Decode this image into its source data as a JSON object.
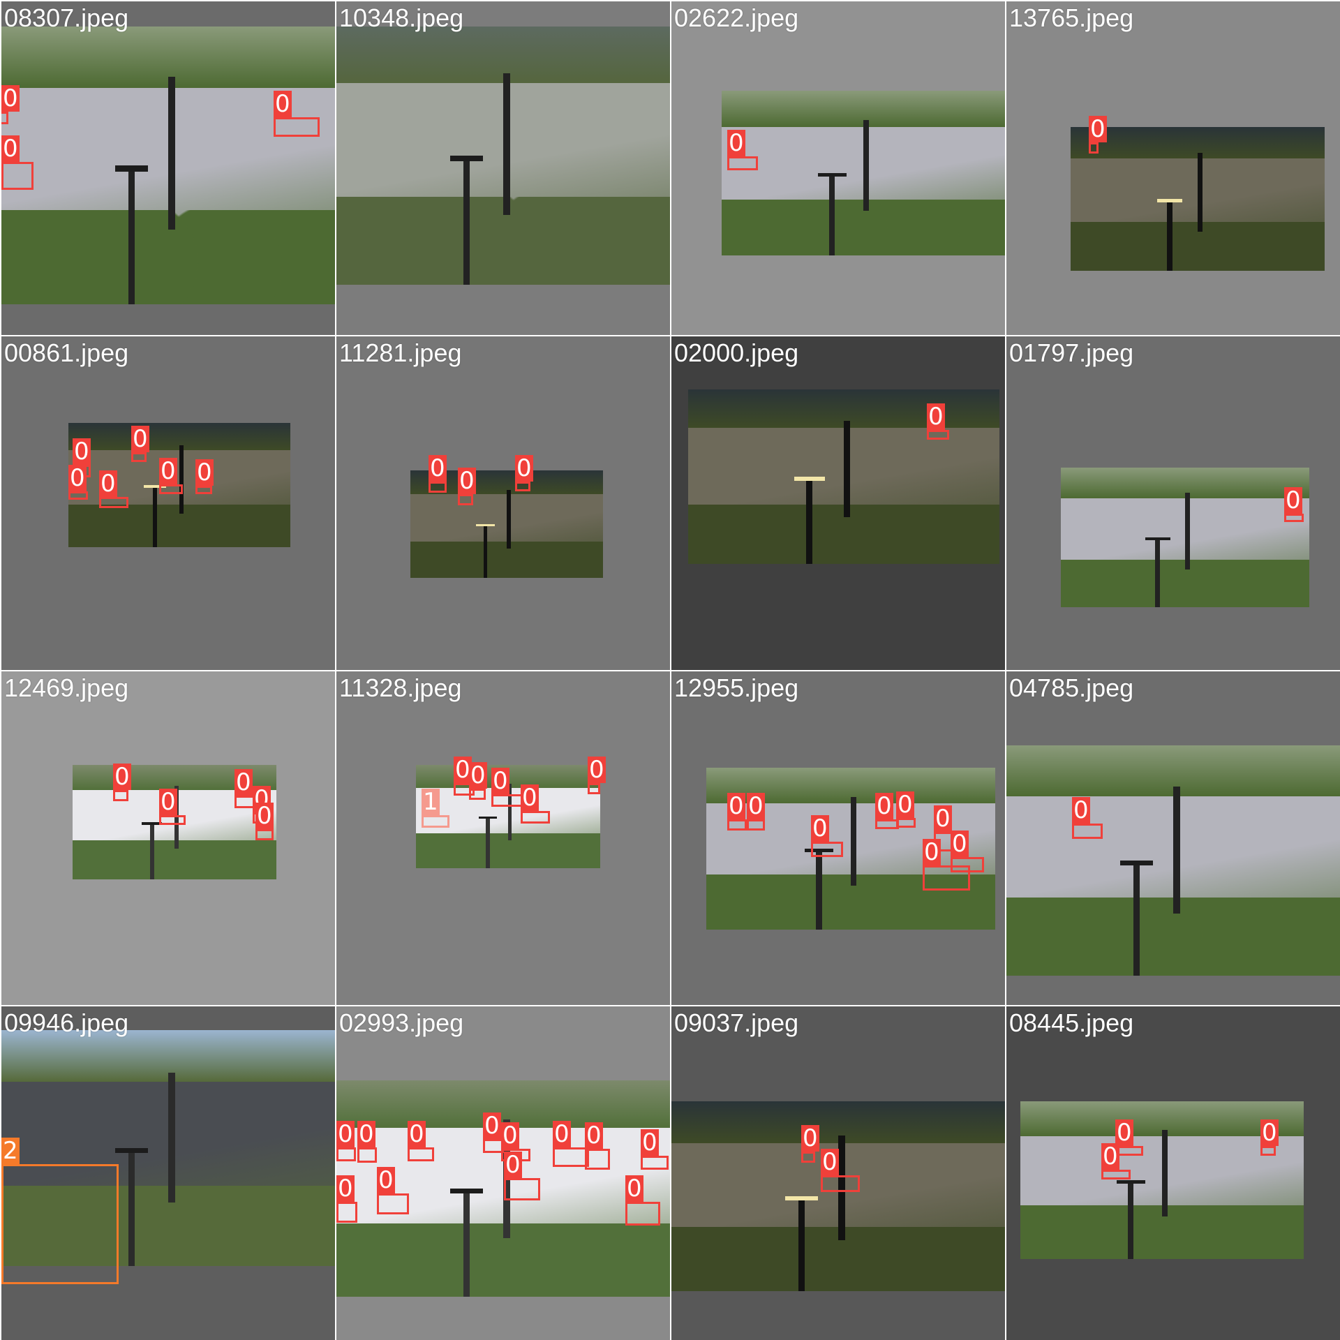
{
  "colors": {
    "class_0": "#f0403a",
    "class_1": "#f59a8e",
    "class_2": "#f57a2a"
  },
  "tiles": [
    {
      "filename": "08307.jpeg",
      "bg": "#6b6b6b",
      "scene": "day",
      "detections": [
        {
          "label": "0",
          "class": 0
        },
        {
          "label": "0",
          "class": 0
        },
        {
          "label": "0",
          "class": 0
        }
      ]
    },
    {
      "filename": "10348.jpeg",
      "bg": "#7c7c7c",
      "scene": "dusk",
      "detections": []
    },
    {
      "filename": "02622.jpeg",
      "bg": "#929292",
      "scene": "day",
      "detections": [
        {
          "label": "0",
          "class": 0
        }
      ]
    },
    {
      "filename": "13765.jpeg",
      "bg": "#898989",
      "scene": "night",
      "detections": [
        {
          "label": "0",
          "class": 0
        }
      ]
    },
    {
      "filename": "00861.jpeg",
      "bg": "#6f6f6f",
      "scene": "night",
      "detections": [
        {
          "label": "0",
          "class": 0
        },
        {
          "label": "0",
          "class": 0
        },
        {
          "label": "0",
          "class": 0
        },
        {
          "label": "0",
          "class": 0
        },
        {
          "label": "0",
          "class": 0
        },
        {
          "label": "0",
          "class": 0
        }
      ]
    },
    {
      "filename": "11281.jpeg",
      "bg": "#767676",
      "scene": "night",
      "detections": [
        {
          "label": "0",
          "class": 0
        },
        {
          "label": "0",
          "class": 0
        },
        {
          "label": "0",
          "class": 0
        }
      ]
    },
    {
      "filename": "02000.jpeg",
      "bg": "#404040",
      "scene": "night",
      "detections": [
        {
          "label": "0",
          "class": 0
        }
      ]
    },
    {
      "filename": "01797.jpeg",
      "bg": "#6d6d6d",
      "scene": "day",
      "detections": [
        {
          "label": "0",
          "class": 0
        }
      ]
    },
    {
      "filename": "12469.jpeg",
      "bg": "#9a9a9a",
      "scene": "bright",
      "detections": [
        {
          "label": "0",
          "class": 0
        },
        {
          "label": "0",
          "class": 0
        },
        {
          "label": "0",
          "class": 0
        },
        {
          "label": "0",
          "class": 0
        },
        {
          "label": "0",
          "class": 0
        }
      ]
    },
    {
      "filename": "11328.jpeg",
      "bg": "#7f7f7f",
      "scene": "bright",
      "detections": [
        {
          "label": "1",
          "class": 1
        },
        {
          "label": "0",
          "class": 0
        },
        {
          "label": "0",
          "class": 0
        },
        {
          "label": "0",
          "class": 0
        },
        {
          "label": "0",
          "class": 0
        },
        {
          "label": "0",
          "class": 0
        }
      ]
    },
    {
      "filename": "12955.jpeg",
      "bg": "#6f6f6f",
      "scene": "day",
      "detections": [
        {
          "label": "0",
          "class": 0
        },
        {
          "label": "0",
          "class": 0
        },
        {
          "label": "0",
          "class": 0
        },
        {
          "label": "0",
          "class": 0
        },
        {
          "label": "0",
          "class": 0
        },
        {
          "label": "0",
          "class": 0
        },
        {
          "label": "0",
          "class": 0
        },
        {
          "label": "0",
          "class": 0
        }
      ]
    },
    {
      "filename": "04785.jpeg",
      "bg": "#6d6d6d",
      "scene": "day",
      "detections": [
        {
          "label": "0",
          "class": 0
        }
      ]
    },
    {
      "filename": "09946.jpeg",
      "bg": "#5e5e5e",
      "scene": "street",
      "detections": [
        {
          "label": "2",
          "class": 2
        }
      ]
    },
    {
      "filename": "02993.jpeg",
      "bg": "#8a8a8a",
      "scene": "bright",
      "detections": [
        {
          "label": "0",
          "class": 0
        },
        {
          "label": "0",
          "class": 0
        },
        {
          "label": "0",
          "class": 0
        },
        {
          "label": "0",
          "class": 0
        },
        {
          "label": "0",
          "class": 0
        },
        {
          "label": "0",
          "class": 0
        },
        {
          "label": "0",
          "class": 0
        },
        {
          "label": "0",
          "class": 0
        },
        {
          "label": "0",
          "class": 0
        },
        {
          "label": "0",
          "class": 0
        },
        {
          "label": "0",
          "class": 0
        },
        {
          "label": "0",
          "class": 0
        }
      ]
    },
    {
      "filename": "09037.jpeg",
      "bg": "#585858",
      "scene": "night",
      "detections": [
        {
          "label": "0",
          "class": 0
        },
        {
          "label": "0",
          "class": 0
        }
      ]
    },
    {
      "filename": "08445.jpeg",
      "bg": "#4a4a4a",
      "scene": "day",
      "detections": [
        {
          "label": "0",
          "class": 0
        },
        {
          "label": "0",
          "class": 0
        },
        {
          "label": "0",
          "class": 0
        }
      ]
    }
  ]
}
